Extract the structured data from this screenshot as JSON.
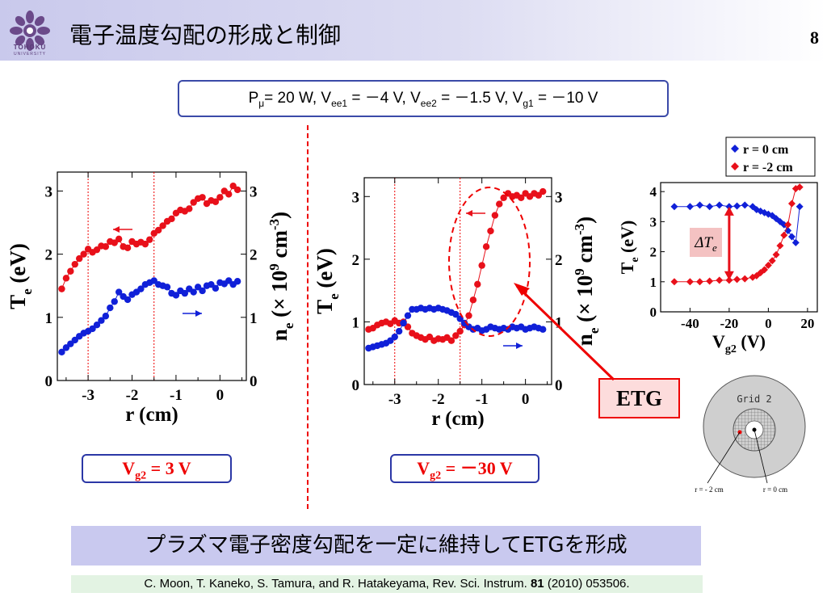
{
  "header": {
    "logo_text": "TOHOKU",
    "logo_sub": "UNIVERSITY",
    "title": "電子温度勾配の形成と制御",
    "page_number": "8"
  },
  "params": {
    "p_label": "P",
    "p_sub": "μ",
    "p_value": "= 20 W, V",
    "ee1_sub": "ee1",
    "ee1_value": " = －4 V, V",
    "ee2_sub": "ee2",
    "ee2_value": " = －1.5 V, V",
    "g1_sub": "g1",
    "g1_value": " = －10 V"
  },
  "left_plot": {
    "xlabel": "r (cm)",
    "y_left_main": "T",
    "y_left_sub": "e",
    "y_left_unit": " (eV)",
    "y_right": "n",
    "y_right_sub": "e",
    "y_right_rest": " (× 10",
    "y_right_sup": "9",
    "y_right_unit": " cm",
    "y_right_sup2": "-3",
    "y_right_close": ")",
    "vg2_label": "V",
    "vg2_sub": "g2",
    "vg2_value": " = 3 V"
  },
  "mid_plot": {
    "xlabel": "r (cm)",
    "vg2_label": "V",
    "vg2_sub": "g2",
    "vg2_value": " = －30 V"
  },
  "right_plot": {
    "xlabel_main": "V",
    "xlabel_sub": "g2",
    "xlabel_unit": " (V)",
    "ylabel_main": "T",
    "ylabel_sub": "e",
    "ylabel_unit": " (eV)",
    "legend": [
      "r = 0 cm",
      "r = -2 cm"
    ],
    "delta_label": "ΔT",
    "delta_sub": "e"
  },
  "etg_label": "ETG",
  "grid_diagram": {
    "title": "Grid 2",
    "label_left": "r = - 2 cm",
    "label_right": "r = 0 cm"
  },
  "bottom_message": "プラズマ電子密度勾配を一定に維持してETGを形成",
  "citation": {
    "authors": "C. Moon, T. Kaneko, S. Tamura, and R. Hatakeyama, Rev. Sci. Instrum. ",
    "volume": "81",
    "rest": " (2010) 053506."
  },
  "colors": {
    "te_series": "#e8101a",
    "ne_series": "#1020d8",
    "frame_blue": "#2b37a6"
  },
  "chart_data": [
    {
      "type": "scatter",
      "name_hint": "left",
      "xlabel": "r (cm)",
      "ylabel": "Te (eV)",
      "ylabel_right": "ne (× 10^9 cm^-3)",
      "xlim": [
        -3.7,
        0.6
      ],
      "ylim": [
        0,
        3.3
      ],
      "x_ticks": [
        "-3",
        "-2",
        "-1",
        "0"
      ],
      "y_ticks": [
        "0",
        "1",
        "2",
        "3"
      ],
      "y_ticks_right": [
        "0",
        "1",
        "2",
        "3"
      ],
      "vlines": [
        -3.0,
        -1.5
      ],
      "series": [
        {
          "color": "red",
          "x": [
            -3.6,
            -3.5,
            -3.4,
            -3.3,
            -3.2,
            -3.1,
            -3.0,
            -2.9,
            -2.8,
            -2.7,
            -2.6,
            -2.5,
            -2.4,
            -2.3,
            -2.2,
            -2.1,
            -2.0,
            -1.9,
            -1.8,
            -1.7,
            -1.6,
            -1.5,
            -1.4,
            -1.3,
            -1.2,
            -1.1,
            -1.0,
            -0.9,
            -0.8,
            -0.7,
            -0.6,
            -0.5,
            -0.4,
            -0.3,
            -0.2,
            -0.1,
            0.0,
            0.1,
            0.2,
            0.3,
            0.4
          ],
          "y": [
            1.45,
            1.62,
            1.73,
            1.84,
            1.93,
            2.0,
            2.08,
            2.03,
            2.07,
            2.13,
            2.12,
            2.2,
            2.18,
            2.24,
            2.12,
            2.1,
            2.2,
            2.16,
            2.19,
            2.16,
            2.23,
            2.33,
            2.38,
            2.45,
            2.52,
            2.56,
            2.65,
            2.7,
            2.68,
            2.72,
            2.82,
            2.88,
            2.9,
            2.8,
            2.85,
            2.83,
            2.9,
            3.0,
            2.95,
            3.08,
            3.02
          ]
        },
        {
          "color": "blue",
          "x": [
            -3.6,
            -3.5,
            -3.4,
            -3.3,
            -3.2,
            -3.1,
            -3.0,
            -2.9,
            -2.8,
            -2.7,
            -2.6,
            -2.5,
            -2.4,
            -2.3,
            -2.2,
            -2.1,
            -2.0,
            -1.9,
            -1.8,
            -1.7,
            -1.6,
            -1.5,
            -1.4,
            -1.3,
            -1.2,
            -1.1,
            -1.0,
            -0.9,
            -0.8,
            -0.7,
            -0.6,
            -0.5,
            -0.4,
            -0.3,
            -0.2,
            -0.1,
            0.0,
            0.1,
            0.2,
            0.3,
            0.4
          ],
          "y": [
            0.45,
            0.52,
            0.58,
            0.64,
            0.7,
            0.75,
            0.78,
            0.82,
            0.88,
            0.95,
            1.02,
            1.15,
            1.25,
            1.4,
            1.33,
            1.28,
            1.36,
            1.4,
            1.45,
            1.52,
            1.55,
            1.58,
            1.52,
            1.5,
            1.48,
            1.38,
            1.35,
            1.42,
            1.38,
            1.45,
            1.4,
            1.48,
            1.42,
            1.5,
            1.52,
            1.46,
            1.55,
            1.53,
            1.58,
            1.52,
            1.57
          ]
        }
      ]
    },
    {
      "type": "scatter",
      "name_hint": "middle",
      "xlabel": "r (cm)",
      "ylabel": "Te (eV)",
      "ylabel_right": "ne (× 10^9 cm^-3)",
      "xlim": [
        -3.7,
        0.6
      ],
      "ylim": [
        0,
        3.3
      ],
      "x_ticks": [
        "-3",
        "-2",
        "-1",
        "0"
      ],
      "y_ticks": [
        "0",
        "1",
        "2",
        "3"
      ],
      "y_ticks_right": [
        "0",
        "1",
        "2",
        "3"
      ],
      "vlines": [
        -3.0,
        -1.5
      ],
      "series": [
        {
          "color": "red",
          "x": [
            -3.6,
            -3.5,
            -3.4,
            -3.3,
            -3.2,
            -3.1,
            -3.0,
            -2.9,
            -2.8,
            -2.7,
            -2.6,
            -2.5,
            -2.4,
            -2.3,
            -2.2,
            -2.1,
            -2.0,
            -1.9,
            -1.8,
            -1.7,
            -1.6,
            -1.5,
            -1.4,
            -1.3,
            -1.2,
            -1.1,
            -1.0,
            -0.9,
            -0.8,
            -0.7,
            -0.6,
            -0.5,
            -0.4,
            -0.3,
            -0.2,
            -0.1,
            0.0,
            0.1,
            0.2,
            0.3,
            0.4
          ],
          "y": [
            0.88,
            0.9,
            0.95,
            0.98,
            1.0,
            0.97,
            1.02,
            0.98,
            1.0,
            0.92,
            0.82,
            0.78,
            0.75,
            0.72,
            0.76,
            0.7,
            0.73,
            0.72,
            0.75,
            0.7,
            0.78,
            0.85,
            0.95,
            1.1,
            1.35,
            1.6,
            1.9,
            2.2,
            2.45,
            2.7,
            2.88,
            2.98,
            3.05,
            3.0,
            3.02,
            2.98,
            3.05,
            3.0,
            3.05,
            3.02,
            3.08
          ]
        },
        {
          "color": "blue",
          "x": [
            -3.6,
            -3.5,
            -3.4,
            -3.3,
            -3.2,
            -3.1,
            -3.0,
            -2.9,
            -2.8,
            -2.7,
            -2.6,
            -2.5,
            -2.4,
            -2.3,
            -2.2,
            -2.1,
            -2.0,
            -1.9,
            -1.8,
            -1.7,
            -1.6,
            -1.5,
            -1.4,
            -1.3,
            -1.2,
            -1.1,
            -1.0,
            -0.9,
            -0.8,
            -0.7,
            -0.6,
            -0.5,
            -0.4,
            -0.3,
            -0.2,
            -0.1,
            0.0,
            0.1,
            0.2,
            0.3,
            0.4
          ],
          "y": [
            0.58,
            0.6,
            0.62,
            0.64,
            0.66,
            0.7,
            0.76,
            0.85,
            0.98,
            1.1,
            1.2,
            1.2,
            1.22,
            1.2,
            1.22,
            1.2,
            1.22,
            1.2,
            1.18,
            1.15,
            1.12,
            1.05,
            0.98,
            0.92,
            0.88,
            0.9,
            0.86,
            0.88,
            0.92,
            0.9,
            0.88,
            0.9,
            0.88,
            0.92,
            0.9,
            0.92,
            0.88,
            0.9,
            0.92,
            0.9,
            0.88
          ]
        }
      ]
    },
    {
      "type": "line",
      "name_hint": "right",
      "xlabel": "Vg2 (V)",
      "ylabel": "Te (eV)",
      "xlim": [
        -55,
        25
      ],
      "ylim": [
        0,
        4.3
      ],
      "x_ticks": [
        "-40",
        "-20",
        "0",
        "20"
      ],
      "y_ticks": [
        "0",
        "1",
        "2",
        "3",
        "4"
      ],
      "legend": "top-right",
      "series": [
        {
          "name": "r = 0 cm",
          "color": "blue",
          "marker": "diamond",
          "x": [
            -48,
            -40,
            -35,
            -30,
            -25,
            -20,
            -16,
            -12,
            -8,
            -6,
            -4,
            -2,
            0,
            2,
            4,
            6,
            8,
            10,
            12,
            14,
            16
          ],
          "y": [
            3.5,
            3.5,
            3.55,
            3.5,
            3.55,
            3.5,
            3.52,
            3.55,
            3.5,
            3.4,
            3.35,
            3.3,
            3.25,
            3.2,
            3.1,
            3.0,
            2.9,
            2.7,
            2.5,
            2.3,
            3.5
          ]
        },
        {
          "name": "r = -2 cm",
          "color": "red",
          "marker": "diamond",
          "x": [
            -48,
            -40,
            -35,
            -30,
            -25,
            -20,
            -16,
            -12,
            -8,
            -6,
            -4,
            -2,
            0,
            2,
            4,
            6,
            8,
            10,
            12,
            14,
            16
          ],
          "y": [
            1.0,
            1.0,
            1.0,
            1.02,
            1.05,
            1.05,
            1.08,
            1.1,
            1.15,
            1.2,
            1.3,
            1.4,
            1.55,
            1.7,
            1.9,
            2.2,
            2.55,
            2.9,
            3.6,
            4.1,
            4.15
          ]
        }
      ]
    }
  ]
}
